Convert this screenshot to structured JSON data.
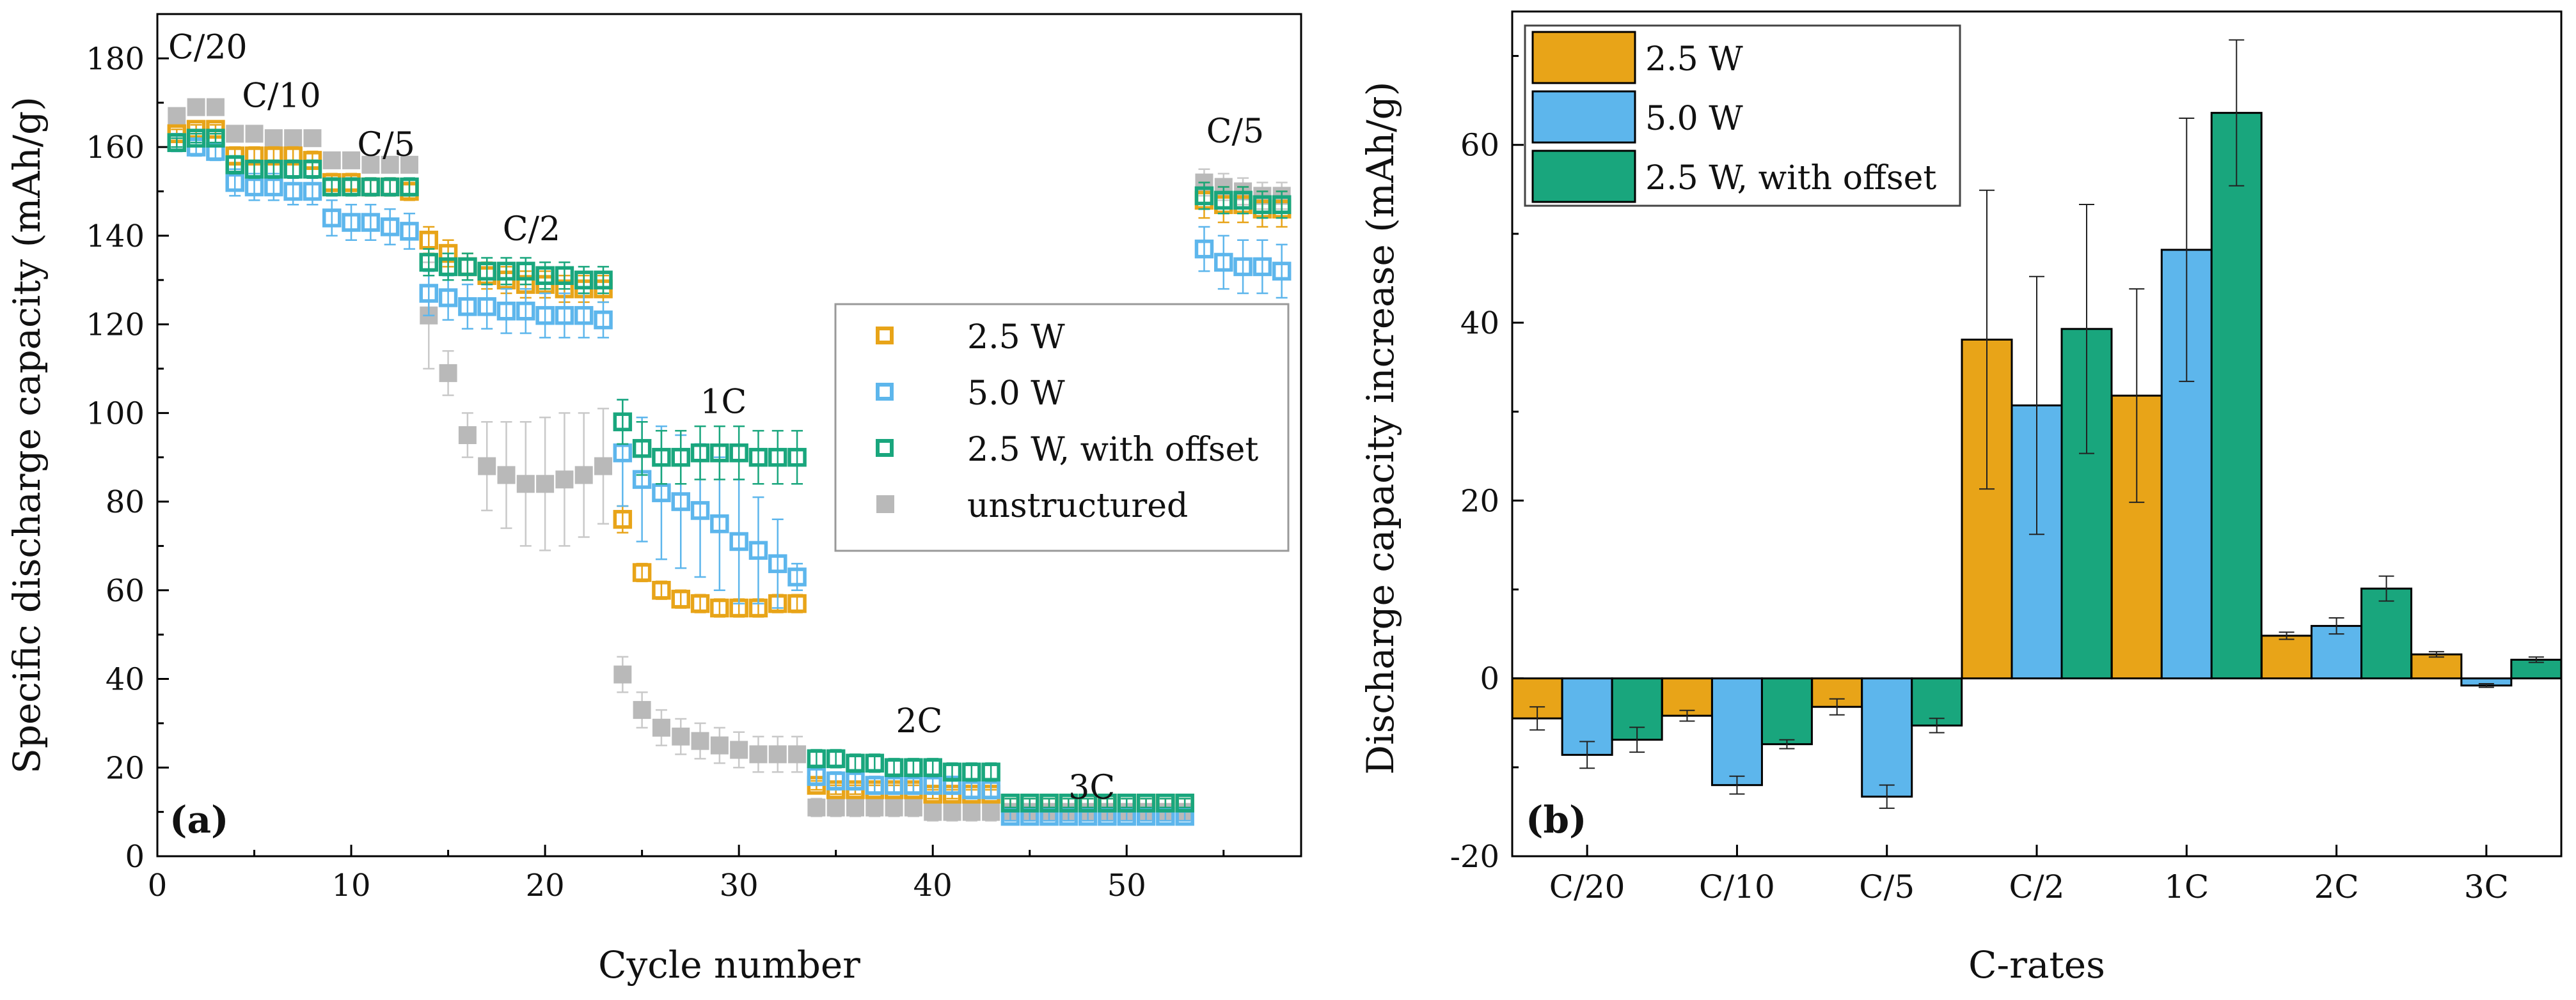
{
  "colors": {
    "c25": "#E8A418",
    "c50": "#5DB6EC",
    "cOff": "#19A67D",
    "cUns": "#B9B9B9",
    "axis": "#000000"
  },
  "chart_data": [
    {
      "type": "scatter",
      "panel_label": "(a)",
      "xlabel": "Cycle number",
      "ylabel": "Specific discharge capacity (mAh/g)",
      "xlim": [
        0,
        59
      ],
      "ylim": [
        0,
        190
      ],
      "xticks": [
        0,
        10,
        20,
        30,
        40,
        50
      ],
      "yticks": [
        0,
        20,
        40,
        60,
        80,
        100,
        120,
        140,
        160,
        180
      ],
      "legend_position": "middle-right",
      "rate_annotations": [
        {
          "text": "C/20",
          "x": 2.6,
          "y": 180
        },
        {
          "text": "C/10",
          "x": 6.4,
          "y": 169
        },
        {
          "text": "C/5",
          "x": 11.8,
          "y": 158
        },
        {
          "text": "C/2",
          "x": 19.3,
          "y": 139
        },
        {
          "text": "1C",
          "x": 29.2,
          "y": 100
        },
        {
          "text": "2C",
          "x": 39.3,
          "y": 28
        },
        {
          "text": "3C",
          "x": 48.2,
          "y": 13
        },
        {
          "text": "C/5",
          "x": 55.6,
          "y": 161
        }
      ],
      "series": [
        {
          "name": "2.5 W",
          "marker": "open-square",
          "color": "#E8A418",
          "x": [
            1,
            2,
            3,
            4,
            5,
            6,
            7,
            8,
            9,
            10,
            11,
            12,
            13,
            14,
            15,
            16,
            17,
            18,
            19,
            20,
            21,
            22,
            23,
            24,
            25,
            26,
            27,
            28,
            29,
            30,
            31,
            32,
            33,
            34,
            35,
            36,
            37,
            38,
            39,
            40,
            41,
            42,
            43,
            44,
            45,
            46,
            47,
            48,
            49,
            50,
            51,
            52,
            53,
            54,
            55,
            56,
            57,
            58
          ],
          "y": [
            163,
            164,
            164,
            158,
            158,
            158,
            158,
            157,
            152,
            152,
            151,
            151,
            150,
            139,
            136,
            133,
            131,
            130,
            129,
            129,
            128,
            128,
            128,
            76,
            64,
            60,
            58,
            57,
            56,
            56,
            56,
            57,
            57,
            16,
            15,
            15,
            15,
            15,
            15,
            14,
            14,
            14,
            14,
            12,
            12,
            12,
            12,
            12,
            12,
            12,
            12,
            12,
            12,
            148,
            147,
            147,
            146,
            146
          ],
          "err": [
            1,
            1,
            1,
            2,
            2,
            2,
            2,
            2,
            2,
            2,
            2,
            2,
            2,
            3,
            3,
            3,
            3,
            3,
            3,
            3,
            3,
            3,
            3,
            3,
            2,
            2,
            2,
            2,
            2,
            2,
            2,
            2,
            2,
            1,
            1,
            1,
            1,
            1,
            1,
            1,
            1,
            1,
            1,
            1,
            1,
            1,
            1,
            1,
            1,
            1,
            1,
            1,
            1,
            4,
            4,
            4,
            4,
            4
          ]
        },
        {
          "name": "5.0 W",
          "marker": "open-square",
          "color": "#5DB6EC",
          "x": [
            1,
            2,
            3,
            4,
            5,
            6,
            7,
            8,
            9,
            10,
            11,
            12,
            13,
            14,
            15,
            16,
            17,
            18,
            19,
            20,
            21,
            22,
            23,
            24,
            25,
            26,
            27,
            28,
            29,
            30,
            31,
            32,
            33,
            34,
            35,
            36,
            37,
            38,
            39,
            40,
            41,
            42,
            43,
            44,
            45,
            46,
            47,
            48,
            49,
            50,
            51,
            52,
            53,
            54,
            55,
            56,
            57,
            58
          ],
          "y": [
            161,
            160,
            159,
            152,
            151,
            151,
            150,
            150,
            144,
            143,
            143,
            142,
            141,
            127,
            126,
            124,
            124,
            123,
            123,
            122,
            122,
            122,
            121,
            91,
            85,
            82,
            80,
            78,
            75,
            71,
            69,
            66,
            63,
            18,
            17,
            17,
            16,
            16,
            16,
            16,
            16,
            15,
            15,
            9,
            9,
            9,
            9,
            9,
            9,
            9,
            9,
            9,
            9,
            137,
            134,
            133,
            133,
            132
          ],
          "err": [
            2,
            2,
            2,
            3,
            3,
            3,
            3,
            3,
            4,
            4,
            4,
            4,
            4,
            5,
            5,
            5,
            5,
            5,
            5,
            5,
            5,
            5,
            4,
            12,
            14,
            15,
            15,
            15,
            15,
            14,
            12,
            10,
            3,
            2,
            2,
            2,
            2,
            2,
            2,
            2,
            2,
            2,
            2,
            1,
            1,
            1,
            1,
            1,
            1,
            1,
            1,
            1,
            1,
            5,
            6,
            6,
            6,
            6
          ]
        },
        {
          "name": "2.5 W, with offset",
          "marker": "open-square",
          "color": "#19A67D",
          "x": [
            1,
            2,
            3,
            4,
            5,
            6,
            7,
            8,
            9,
            10,
            11,
            12,
            13,
            14,
            15,
            16,
            17,
            18,
            19,
            20,
            21,
            22,
            23,
            24,
            25,
            26,
            27,
            28,
            29,
            30,
            31,
            32,
            33,
            34,
            35,
            36,
            37,
            38,
            39,
            40,
            41,
            42,
            43,
            44,
            45,
            46,
            47,
            48,
            49,
            50,
            51,
            52,
            53,
            54,
            55,
            56,
            57,
            58
          ],
          "y": [
            161,
            162,
            162,
            156,
            155,
            155,
            155,
            155,
            151,
            151,
            151,
            151,
            151,
            134,
            133,
            133,
            132,
            132,
            132,
            131,
            131,
            130,
            130,
            98,
            92,
            90,
            90,
            91,
            91,
            91,
            90,
            90,
            90,
            22,
            22,
            21,
            21,
            20,
            20,
            20,
            19,
            19,
            19,
            12,
            12,
            12,
            12,
            12,
            12,
            12,
            12,
            12,
            12,
            149,
            148,
            148,
            147,
            147
          ],
          "err": [
            1,
            1,
            1,
            2,
            2,
            2,
            2,
            2,
            2,
            2,
            2,
            2,
            2,
            3,
            3,
            3,
            3,
            3,
            3,
            3,
            3,
            3,
            3,
            5,
            6,
            6,
            6,
            6,
            6,
            6,
            6,
            6,
            6,
            2,
            2,
            2,
            2,
            2,
            2,
            2,
            2,
            2,
            2,
            1,
            1,
            1,
            1,
            1,
            1,
            1,
            1,
            1,
            1,
            3,
            3,
            3,
            3,
            3
          ]
        },
        {
          "name": "unstructured",
          "marker": "filled-square",
          "color": "#B9B9B9",
          "x": [
            1,
            2,
            3,
            4,
            5,
            6,
            7,
            8,
            9,
            10,
            11,
            12,
            13,
            14,
            15,
            16,
            17,
            18,
            19,
            20,
            21,
            22,
            23,
            24,
            25,
            26,
            27,
            28,
            29,
            30,
            31,
            32,
            33,
            34,
            35,
            36,
            37,
            38,
            39,
            40,
            41,
            42,
            43,
            44,
            45,
            46,
            47,
            48,
            49,
            50,
            51,
            52,
            53,
            54,
            55,
            56,
            57,
            58
          ],
          "y": [
            167,
            169,
            169,
            163,
            163,
            162,
            162,
            162,
            157,
            157,
            156,
            156,
            156,
            122,
            109,
            95,
            88,
            86,
            84,
            84,
            85,
            86,
            88,
            41,
            33,
            29,
            27,
            26,
            25,
            24,
            23,
            23,
            23,
            11,
            11,
            11,
            11,
            11,
            11,
            10,
            10,
            10,
            10,
            10,
            10,
            10,
            10,
            10,
            10,
            10,
            10,
            10,
            10,
            152,
            151,
            150,
            149,
            149
          ],
          "err": [
            1,
            1,
            1,
            1,
            1,
            1,
            1,
            1,
            1,
            1,
            1,
            1,
            1,
            12,
            5,
            5,
            10,
            12,
            14,
            15,
            15,
            14,
            13,
            4,
            4,
            4,
            4,
            4,
            4,
            4,
            4,
            4,
            4,
            2,
            2,
            2,
            2,
            2,
            2,
            2,
            2,
            2,
            2,
            1,
            1,
            1,
            1,
            1,
            1,
            1,
            1,
            1,
            1,
            3,
            3,
            3,
            3,
            3
          ]
        }
      ]
    },
    {
      "type": "bar",
      "panel_label": "(b)",
      "xlabel": "C-rates",
      "ylabel": "Discharge capacity increase (mAh/g)",
      "ylim": [
        -20,
        75
      ],
      "yticks": [
        -20,
        0,
        20,
        40,
        60
      ],
      "categories": [
        "C/20",
        "C/10",
        "C/5",
        "C/2",
        "1C",
        "2C",
        "3C"
      ],
      "legend_position": "top-left",
      "series": [
        {
          "name": "2.5 W",
          "color": "#E8A418",
          "values": [
            -4.5,
            -4.2,
            -3.2,
            38.1,
            31.8,
            4.8,
            2.7
          ],
          "err": [
            1.3,
            0.6,
            0.9,
            16.8,
            12.0,
            0.4,
            0.3
          ]
        },
        {
          "name": "5.0 W",
          "color": "#5DB6EC",
          "values": [
            -8.6,
            -12.0,
            -13.3,
            30.7,
            48.2,
            5.9,
            -0.8
          ],
          "err": [
            1.5,
            1.0,
            1.3,
            14.5,
            14.8,
            0.9,
            0.2
          ]
        },
        {
          "name": "2.5 W, with offset",
          "color": "#19A67D",
          "values": [
            -6.9,
            -7.4,
            -5.3,
            39.3,
            63.6,
            10.1,
            2.1
          ],
          "err": [
            1.4,
            0.5,
            0.8,
            14.0,
            8.2,
            1.4,
            0.3
          ]
        }
      ]
    }
  ]
}
